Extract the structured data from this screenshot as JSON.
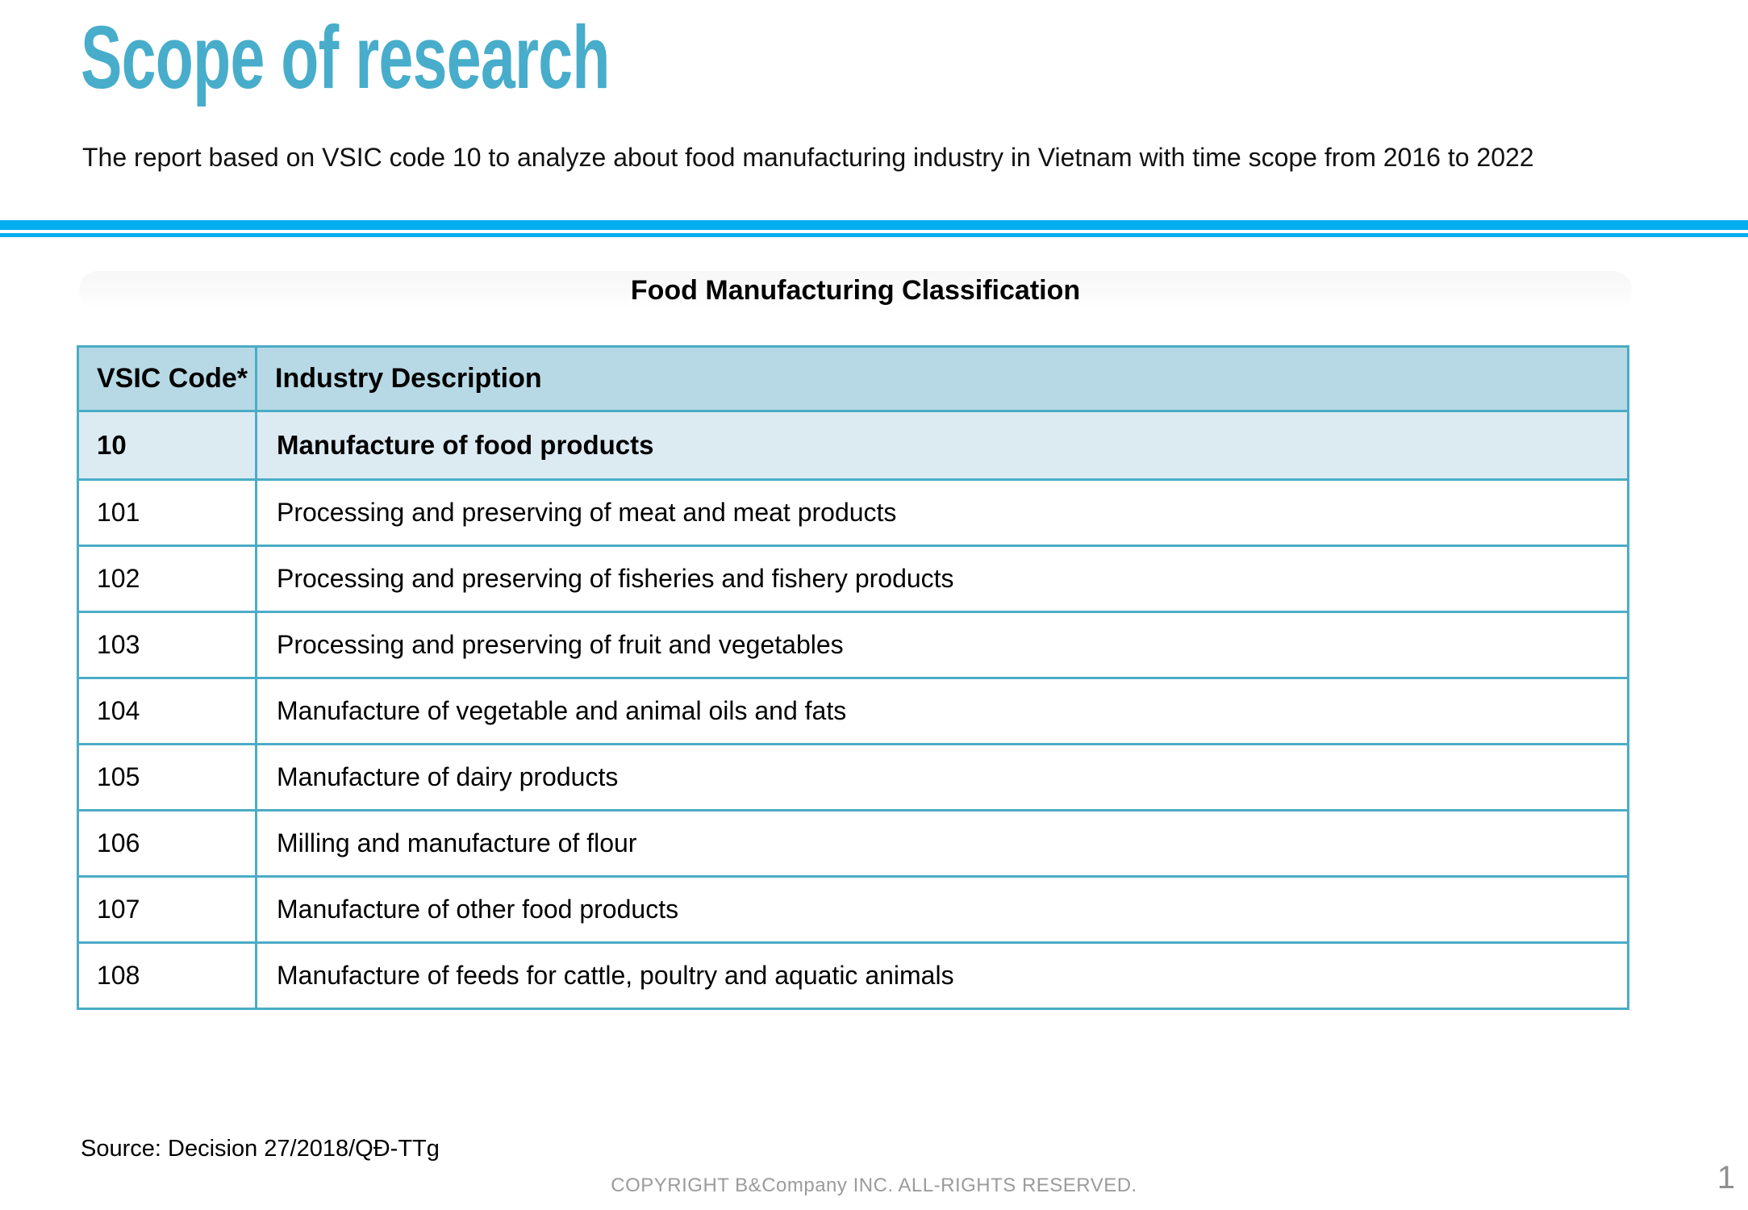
{
  "slide": {
    "title": "Scope of research",
    "intro": "The report based on VSIC code 10 to analyze about food manufacturing industry in Vietnam with time scope from 2016 to 2022",
    "page_number": "1"
  },
  "classification_table": {
    "caption": "Food Manufacturing Classification",
    "columns": [
      {
        "label": "VSIC Code*"
      },
      {
        "label": "Industry Description"
      }
    ],
    "rows": [
      {
        "code": "10",
        "description": "Manufacture of food products"
      },
      {
        "code": "101",
        "description": "Processing and preserving of meat and meat products"
      },
      {
        "code": "102",
        "description": "Processing and preserving of fisheries and fishery products"
      },
      {
        "code": "103",
        "description": "Processing and preserving of fruit and vegetables"
      },
      {
        "code": "104",
        "description": "Manufacture of vegetable and animal oils and fats"
      },
      {
        "code": "105",
        "description": "Manufacture of dairy products"
      },
      {
        "code": "106",
        "description": "Milling and manufacture of flour"
      },
      {
        "code": "107",
        "description": "Manufacture of other food products"
      },
      {
        "code": "108",
        "description": "Manufacture of feeds for cattle, poultry and aquatic animals"
      }
    ]
  },
  "footer": {
    "source": "Source: Decision 27/2018/QĐ-TTg",
    "copyright": "COPYRIGHT B&Company INC. ALL-RIGHTS RESERVED."
  },
  "colors": {
    "title_teal": "#47ADCB",
    "divider_blue": "#00AEEF",
    "table_border": "#4BACC6",
    "header_row_bg": "#B7D9E5",
    "summary_row_bg": "#DCEAF2",
    "footer_gray": "#9B9B9B"
  }
}
